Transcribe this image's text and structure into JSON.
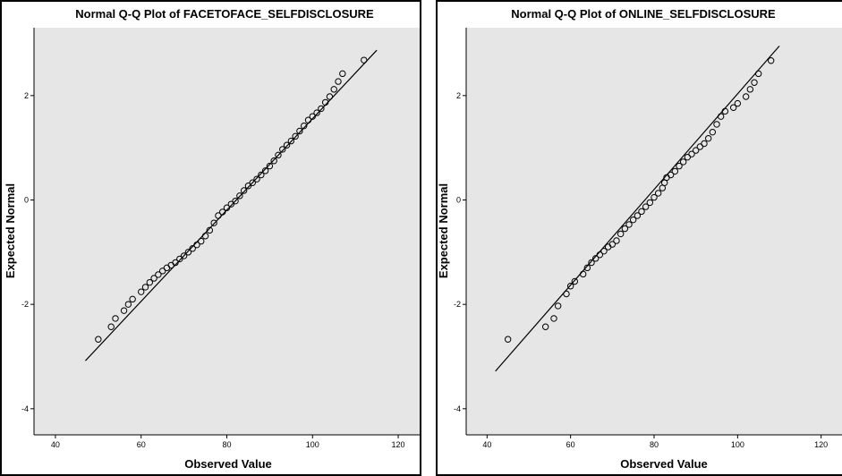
{
  "chart_data": [
    {
      "type": "scatter",
      "title": "Normal Q-Q Plot of FACETOFACE_SELFDISCLOSURE",
      "xlabel": "Observed Value",
      "ylabel": "Expected Normal",
      "xlim": [
        35,
        125
      ],
      "ylim": [
        -4.5,
        3.3
      ],
      "xticks": [
        40,
        60,
        80,
        100,
        120
      ],
      "yticks": [
        -4,
        -2,
        0,
        2
      ],
      "plot_background": "#e6e6e6",
      "line": {
        "x1": 47,
        "y1": -3.08,
        "x2": 115,
        "y2": 2.87
      },
      "points": [
        [
          50,
          -2.67
        ],
        [
          53,
          -2.43
        ],
        [
          54,
          -2.27
        ],
        [
          56,
          -2.12
        ],
        [
          57,
          -2.0
        ],
        [
          58,
          -1.9
        ],
        [
          60,
          -1.76
        ],
        [
          61,
          -1.67
        ],
        [
          62,
          -1.58
        ],
        [
          63,
          -1.5
        ],
        [
          64,
          -1.43
        ],
        [
          65,
          -1.36
        ],
        [
          66,
          -1.3
        ],
        [
          67,
          -1.25
        ],
        [
          68,
          -1.2
        ],
        [
          69,
          -1.13
        ],
        [
          70,
          -1.07
        ],
        [
          71,
          -1.0
        ],
        [
          72,
          -0.93
        ],
        [
          73,
          -0.86
        ],
        [
          74,
          -0.79
        ],
        [
          75,
          -0.69
        ],
        [
          76,
          -0.58
        ],
        [
          77,
          -0.44
        ],
        [
          78,
          -0.3
        ],
        [
          79,
          -0.23
        ],
        [
          80,
          -0.15
        ],
        [
          81,
          -0.08
        ],
        [
          82,
          -0.02
        ],
        [
          83,
          0.08
        ],
        [
          84,
          0.18
        ],
        [
          85,
          0.27
        ],
        [
          86,
          0.33
        ],
        [
          87,
          0.4
        ],
        [
          88,
          0.48
        ],
        [
          89,
          0.56
        ],
        [
          90,
          0.65
        ],
        [
          91,
          0.75
        ],
        [
          92,
          0.86
        ],
        [
          93,
          0.97
        ],
        [
          94,
          1.05
        ],
        [
          95,
          1.13
        ],
        [
          96,
          1.22
        ],
        [
          97,
          1.32
        ],
        [
          98,
          1.42
        ],
        [
          99,
          1.53
        ],
        [
          100,
          1.6
        ],
        [
          101,
          1.67
        ],
        [
          102,
          1.75
        ],
        [
          103,
          1.87
        ],
        [
          104,
          1.98
        ],
        [
          105,
          2.12
        ],
        [
          106,
          2.27
        ],
        [
          107,
          2.42
        ],
        [
          112,
          2.68
        ]
      ]
    },
    {
      "type": "scatter",
      "title": "Normal Q-Q Plot of ONLINE_SELFDISCLOSURE",
      "xlabel": "Observed Value",
      "ylabel": "Expected Normal",
      "xlim": [
        35,
        125
      ],
      "ylim": [
        -4.5,
        3.3
      ],
      "xticks": [
        40,
        60,
        80,
        100,
        120
      ],
      "yticks": [
        -4,
        -2,
        0,
        2
      ],
      "plot_background": "#e6e6e6",
      "line": {
        "x1": 42,
        "y1": -3.28,
        "x2": 110,
        "y2": 2.95
      },
      "points": [
        [
          45,
          -2.67
        ],
        [
          54,
          -2.43
        ],
        [
          56,
          -2.27
        ],
        [
          57,
          -2.03
        ],
        [
          59,
          -1.8
        ],
        [
          60,
          -1.65
        ],
        [
          61,
          -1.56
        ],
        [
          63,
          -1.42
        ],
        [
          64,
          -1.3
        ],
        [
          65,
          -1.2
        ],
        [
          66,
          -1.12
        ],
        [
          67,
          -1.05
        ],
        [
          68,
          -0.98
        ],
        [
          69,
          -0.9
        ],
        [
          70,
          -0.85
        ],
        [
          71,
          -0.78
        ],
        [
          72,
          -0.65
        ],
        [
          73,
          -0.55
        ],
        [
          74,
          -0.47
        ],
        [
          75,
          -0.38
        ],
        [
          76,
          -0.3
        ],
        [
          77,
          -0.22
        ],
        [
          78,
          -0.13
        ],
        [
          79,
          -0.05
        ],
        [
          80,
          0.05
        ],
        [
          81,
          0.13
        ],
        [
          82,
          0.23
        ],
        [
          82.5,
          0.33
        ],
        [
          83,
          0.43
        ],
        [
          84,
          0.48
        ],
        [
          85,
          0.55
        ],
        [
          86,
          0.65
        ],
        [
          87,
          0.73
        ],
        [
          88,
          0.82
        ],
        [
          89,
          0.88
        ],
        [
          90,
          0.95
        ],
        [
          91,
          1.02
        ],
        [
          92,
          1.08
        ],
        [
          93,
          1.18
        ],
        [
          94,
          1.3
        ],
        [
          95,
          1.45
        ],
        [
          96,
          1.6
        ],
        [
          97,
          1.7
        ],
        [
          99,
          1.77
        ],
        [
          100,
          1.85
        ],
        [
          102,
          1.98
        ],
        [
          103,
          2.12
        ],
        [
          104,
          2.25
        ],
        [
          105,
          2.42
        ],
        [
          108,
          2.67
        ]
      ]
    }
  ]
}
